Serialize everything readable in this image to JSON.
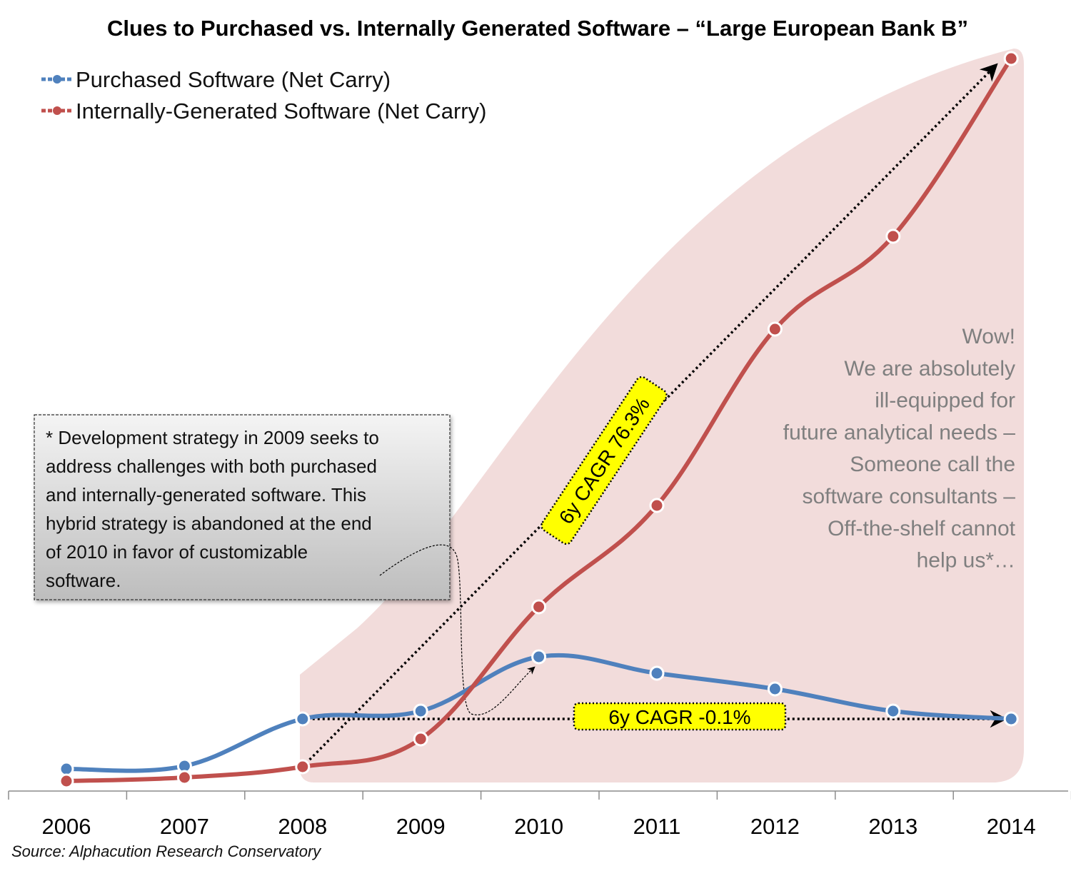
{
  "chart_data": {
    "type": "line",
    "title": "Clues to Purchased vs. Internally Generated Software – “Large European Bank B”",
    "xlabel": "",
    "ylabel": "",
    "x": [
      "2006",
      "2007",
      "2008",
      "2009",
      "2010",
      "2011",
      "2012",
      "2013",
      "2014"
    ],
    "ylim": [
      0,
      107
    ],
    "y_unit_note": "relative units (no y-axis shown)",
    "grid": false,
    "legend_position": "top-left",
    "series": [
      {
        "name": "Purchased Software (Net Carry)",
        "color": "#4f81bd",
        "values": [
          3.1,
          3.5,
          10.1,
          11.2,
          18.8,
          16.5,
          14.3,
          11.2,
          10.1
        ]
      },
      {
        "name": "Internally-Generated Software (Net Carry)",
        "color": "#c0504d",
        "values": [
          1.4,
          1.9,
          3.4,
          7.3,
          25.8,
          40.0,
          64.7,
          77.7,
          102.6
        ]
      }
    ],
    "annotations": [
      {
        "type": "cagr-arrow",
        "label": "6y CAGR 76.3%",
        "from": "2008",
        "to": "2014",
        "series": 1
      },
      {
        "type": "cagr-arrow",
        "label": "6y CAGR -0.1%",
        "from": "2008",
        "to": "2014",
        "series": 0
      },
      {
        "type": "note-box",
        "lines": [
          "* Development  strategy in 2009 seeks to",
          "address challenges with both purchased",
          "and internally-generated software. This",
          "hybrid strategy is abandoned at the end",
          "of 2010 in favor of customizable",
          "software."
        ],
        "points_to": "2010"
      },
      {
        "type": "callout",
        "lines": [
          "Wow!",
          "We are absolutely",
          "ill-equipped for",
          "future analytical needs –",
          "Someone call the",
          "software consultants –",
          "Off-the-shelf cannot",
          "help us*…"
        ]
      }
    ],
    "highlight_region": {
      "from": "2008",
      "to": "2014",
      "color": "#f2dcdb"
    },
    "source": "Source: Alphacution Research Conservatory"
  }
}
